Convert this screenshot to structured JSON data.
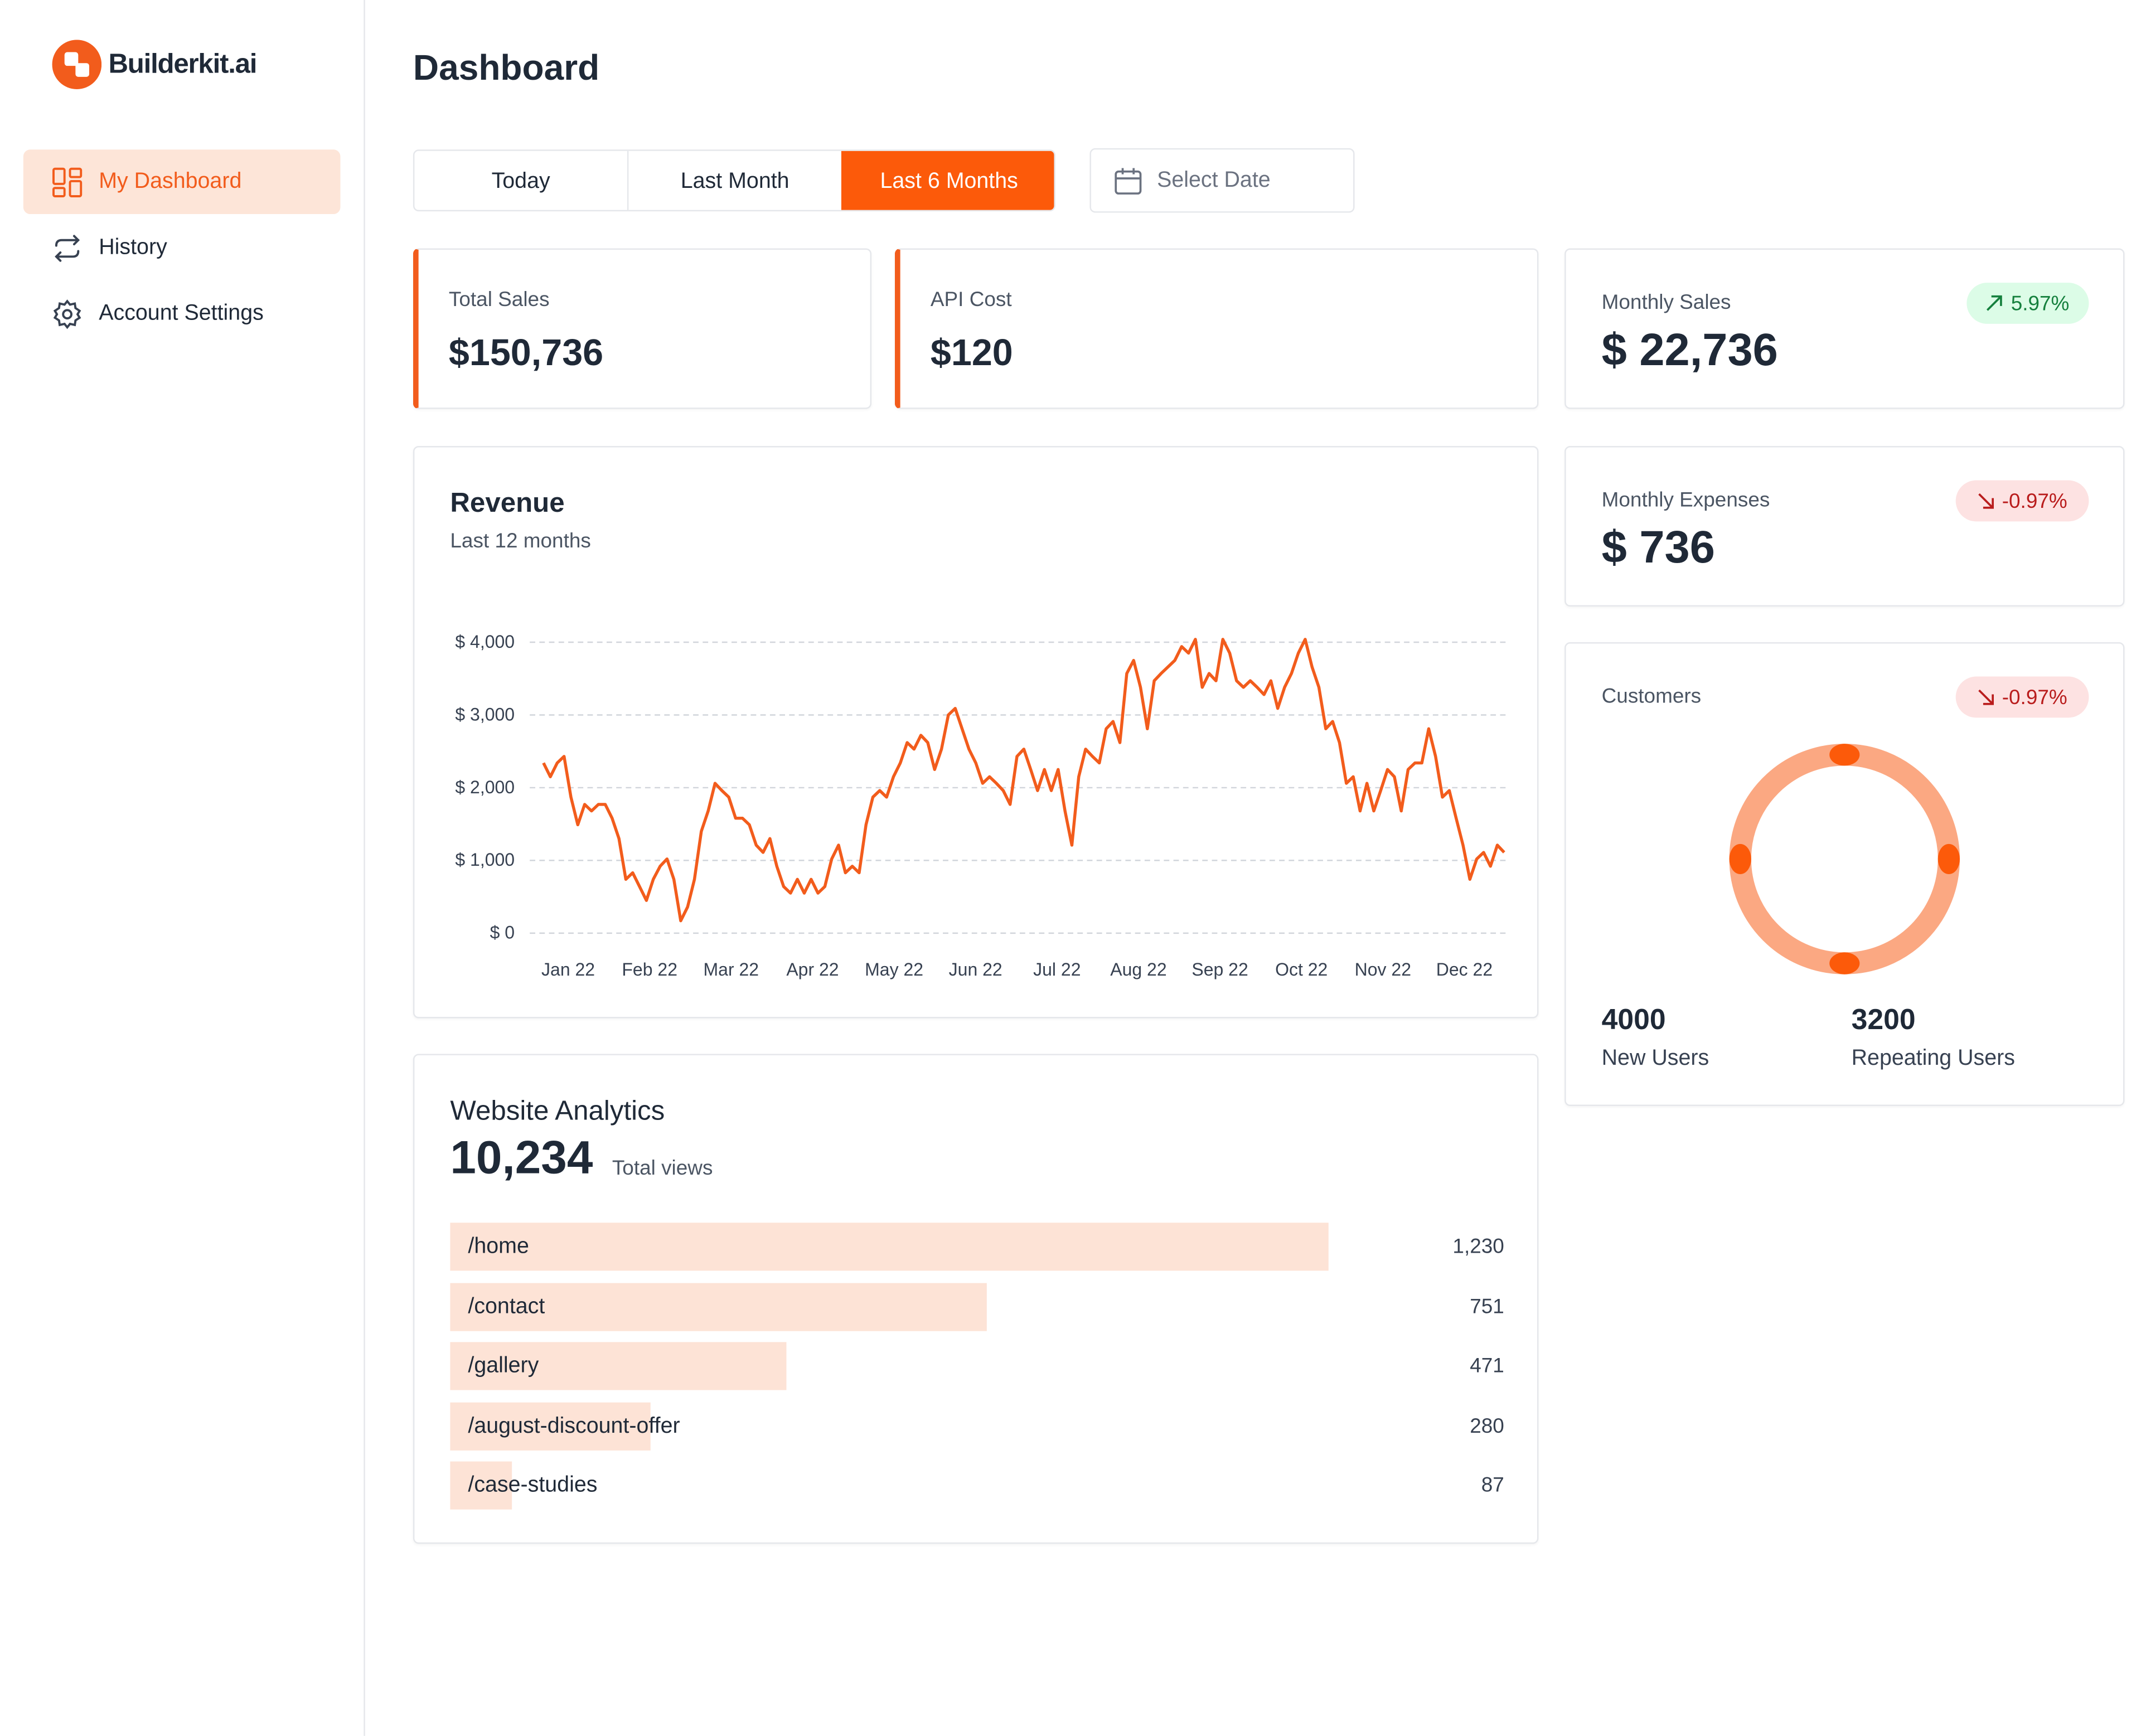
{
  "sidebar": {
    "brand": "Builderkit.ai",
    "nav": [
      "My Dashboard",
      "History",
      "Account Settings"
    ]
  },
  "header": {
    "title": "Dashboard"
  },
  "filters": {
    "tabs": [
      "Today",
      "Last Month",
      "Last 6 Months"
    ],
    "date_picker": "Select Date"
  },
  "stats": [
    {
      "label": "Total Sales",
      "value": "$150,736"
    },
    {
      "label": "API Cost",
      "value": "$120"
    }
  ],
  "side_stats": [
    {
      "label": "Monthly Sales",
      "value": "$ 22,736",
      "change": "5.97%"
    },
    {
      "label": "Monthly Expenses",
      "value": "$ 736",
      "change": "-0.97%"
    }
  ],
  "customers": {
    "title": "Customers",
    "change": "-0.97%",
    "metrics": [
      {
        "value": "4000",
        "label": "New Users"
      },
      {
        "value": "3200",
        "label": "Repeating Users"
      }
    ]
  },
  "chart_data": [
    {
      "type": "line",
      "title": "Revenue",
      "subtitle": "Last 12 months",
      "color": "#f25c1c",
      "grid": true,
      "xticks": [
        "Jan 22",
        "Feb 22",
        "Mar 22",
        "Apr 22",
        "May 22",
        "Jun 22",
        "Jul 22",
        "Aug 22",
        "Sep 22",
        "Oct 22",
        "Nov 22",
        "Dec 22"
      ],
      "ylim": [
        0,
        4000
      ],
      "yticks": [
        {
          "value": 0,
          "label": "$ 0"
        },
        {
          "value": 1000,
          "label": "$ 1,000"
        },
        {
          "value": 2000,
          "label": "$ 2,000"
        },
        {
          "value": 3000,
          "label": "$ 3,000"
        },
        {
          "value": 4000,
          "label": "$ 4,000"
        }
      ],
      "values": [
        2340,
        2150,
        2340,
        2430,
        1870,
        1490,
        1770,
        1680,
        1770,
        1770,
        1580,
        1300,
        740,
        830,
        640,
        450,
        740,
        920,
        1020,
        740,
        170,
        360,
        740,
        1400,
        1680,
        2060,
        1960,
        1870,
        1580,
        1580,
        1490,
        1210,
        1110,
        1300,
        920,
        640,
        550,
        740,
        550,
        740,
        550,
        640,
        1020,
        1210,
        830,
        920,
        830,
        1490,
        1870,
        1960,
        1870,
        2150,
        2340,
        2620,
        2530,
        2720,
        2620,
        2250,
        2530,
        3000,
        3090,
        2810,
        2530,
        2340,
        2060,
        2150,
        2060,
        1960,
        1770,
        2430,
        2530,
        2250,
        1960,
        2250,
        1960,
        2250,
        1680,
        1210,
        2150,
        2530,
        2430,
        2340,
        2810,
        2910,
        2620,
        3570,
        3750,
        3380,
        2810,
        3470,
        3570,
        3660,
        3750,
        3940,
        3850,
        4040,
        3380,
        3570,
        3470,
        4040,
        3850,
        3470,
        3380,
        3470,
        3380,
        3280,
        3470,
        3090,
        3380,
        3570,
        3850,
        4040,
        3660,
        3380,
        2810,
        2910,
        2620,
        2060,
        2150,
        1680,
        2060,
        1680,
        1960,
        2250,
        2150,
        1680,
        2250,
        2340,
        2340,
        2810,
        2430,
        1870,
        1960,
        1580,
        1210,
        740,
        1020,
        1110,
        920,
        1210,
        1110
      ]
    },
    {
      "type": "bar",
      "title": "Website Analytics",
      "total": "10,234",
      "total_label": "Total views",
      "color": "#fde3d6",
      "categories": [
        "/home",
        "/contact",
        "/gallery",
        "/august-discount-offer",
        "/case-studies"
      ],
      "values": [
        1230,
        751,
        471,
        280,
        87
      ],
      "value_labels": [
        "1,230",
        "751",
        "471",
        "280",
        "87"
      ],
      "xlim": [
        0,
        1475
      ]
    }
  ]
}
